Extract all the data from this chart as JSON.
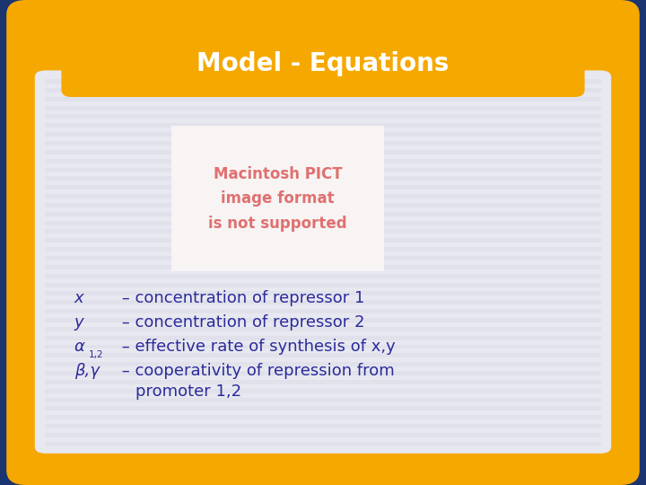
{
  "title": "Model - Equations",
  "title_color": "#FFFFFF",
  "title_bg_color": "#F5A800",
  "outer_bg_color": "#1B3570",
  "inner_bg_color": "#E8E8F0",
  "inner_stripe_color": "#DDDDE8",
  "inner_border_color": "#F5A800",
  "pict_placeholder_bg": "#F8F4F4",
  "pict_text": "Macintosh PICT\nimage format\nis not supported",
  "pict_text_color": "#E07070",
  "text_color": "#2B2B9B",
  "line1_prefix": "x",
  "line2_prefix": "y",
  "line3_prefix": "α",
  "line3_sub": "1,2",
  "line4_prefix": "β,γ",
  "line1_text": " – concentration of repressor 1",
  "line2_text": " – concentration of repressor 2",
  "line3_text": " – effective rate of synthesis of x,y",
  "line4_text": " – cooperativity of repression from",
  "line5_text": "promoter 1,2"
}
